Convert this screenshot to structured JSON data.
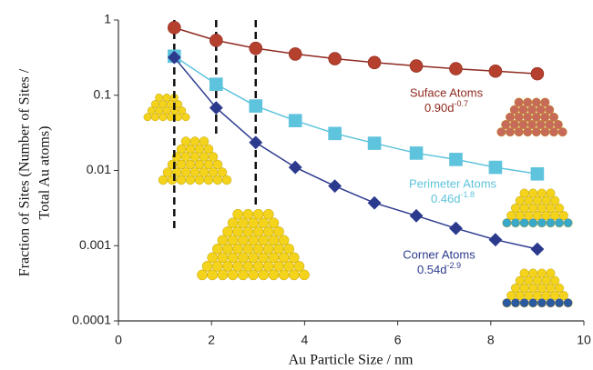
{
  "chart_data": {
    "type": "line",
    "x_label": "Au Particle Size / nm",
    "y_label": [
      "Fraction of Sites  (Number of Sites /",
      "Total Au atoms)"
    ],
    "xlim": [
      0,
      10
    ],
    "xticks": [
      0,
      2,
      4,
      6,
      8,
      10
    ],
    "ylim": [
      0.0001,
      1
    ],
    "yticks": [
      0.0001,
      0.001,
      0.01,
      0.1,
      1
    ],
    "log_y": true,
    "x": [
      1.2,
      2.1,
      2.95,
      3.8,
      4.65,
      5.5,
      6.4,
      7.25,
      8.1,
      9.0
    ],
    "series": [
      {
        "name": "Suface Atoms",
        "formula": "0.90d",
        "exponent": "-0.7",
        "color": "#b5402e",
        "line_color": "#8e2a20",
        "marker": "circle",
        "values": [
          0.79,
          0.535,
          0.42,
          0.353,
          0.306,
          0.272,
          0.245,
          0.225,
          0.209,
          0.193
        ]
      },
      {
        "name": "Perimeter Atoms",
        "formula": "0.46d",
        "exponent": "-1.8",
        "color": "#5ec3dc",
        "line_color": "#5ec3dc",
        "marker": "square",
        "values": [
          0.33,
          0.14,
          0.072,
          0.046,
          0.031,
          0.023,
          0.017,
          0.014,
          0.011,
          0.009
        ]
      },
      {
        "name": "Corner Atoms",
        "formula": "0.54d",
        "exponent": "-2.9",
        "color": "#2c3a8e",
        "line_color": "#2c3a8e",
        "marker": "diamond",
        "values": [
          0.318,
          0.068,
          0.0235,
          0.011,
          0.0062,
          0.0037,
          0.0025,
          0.0017,
          0.0012,
          0.0009
        ]
      }
    ]
  }
}
